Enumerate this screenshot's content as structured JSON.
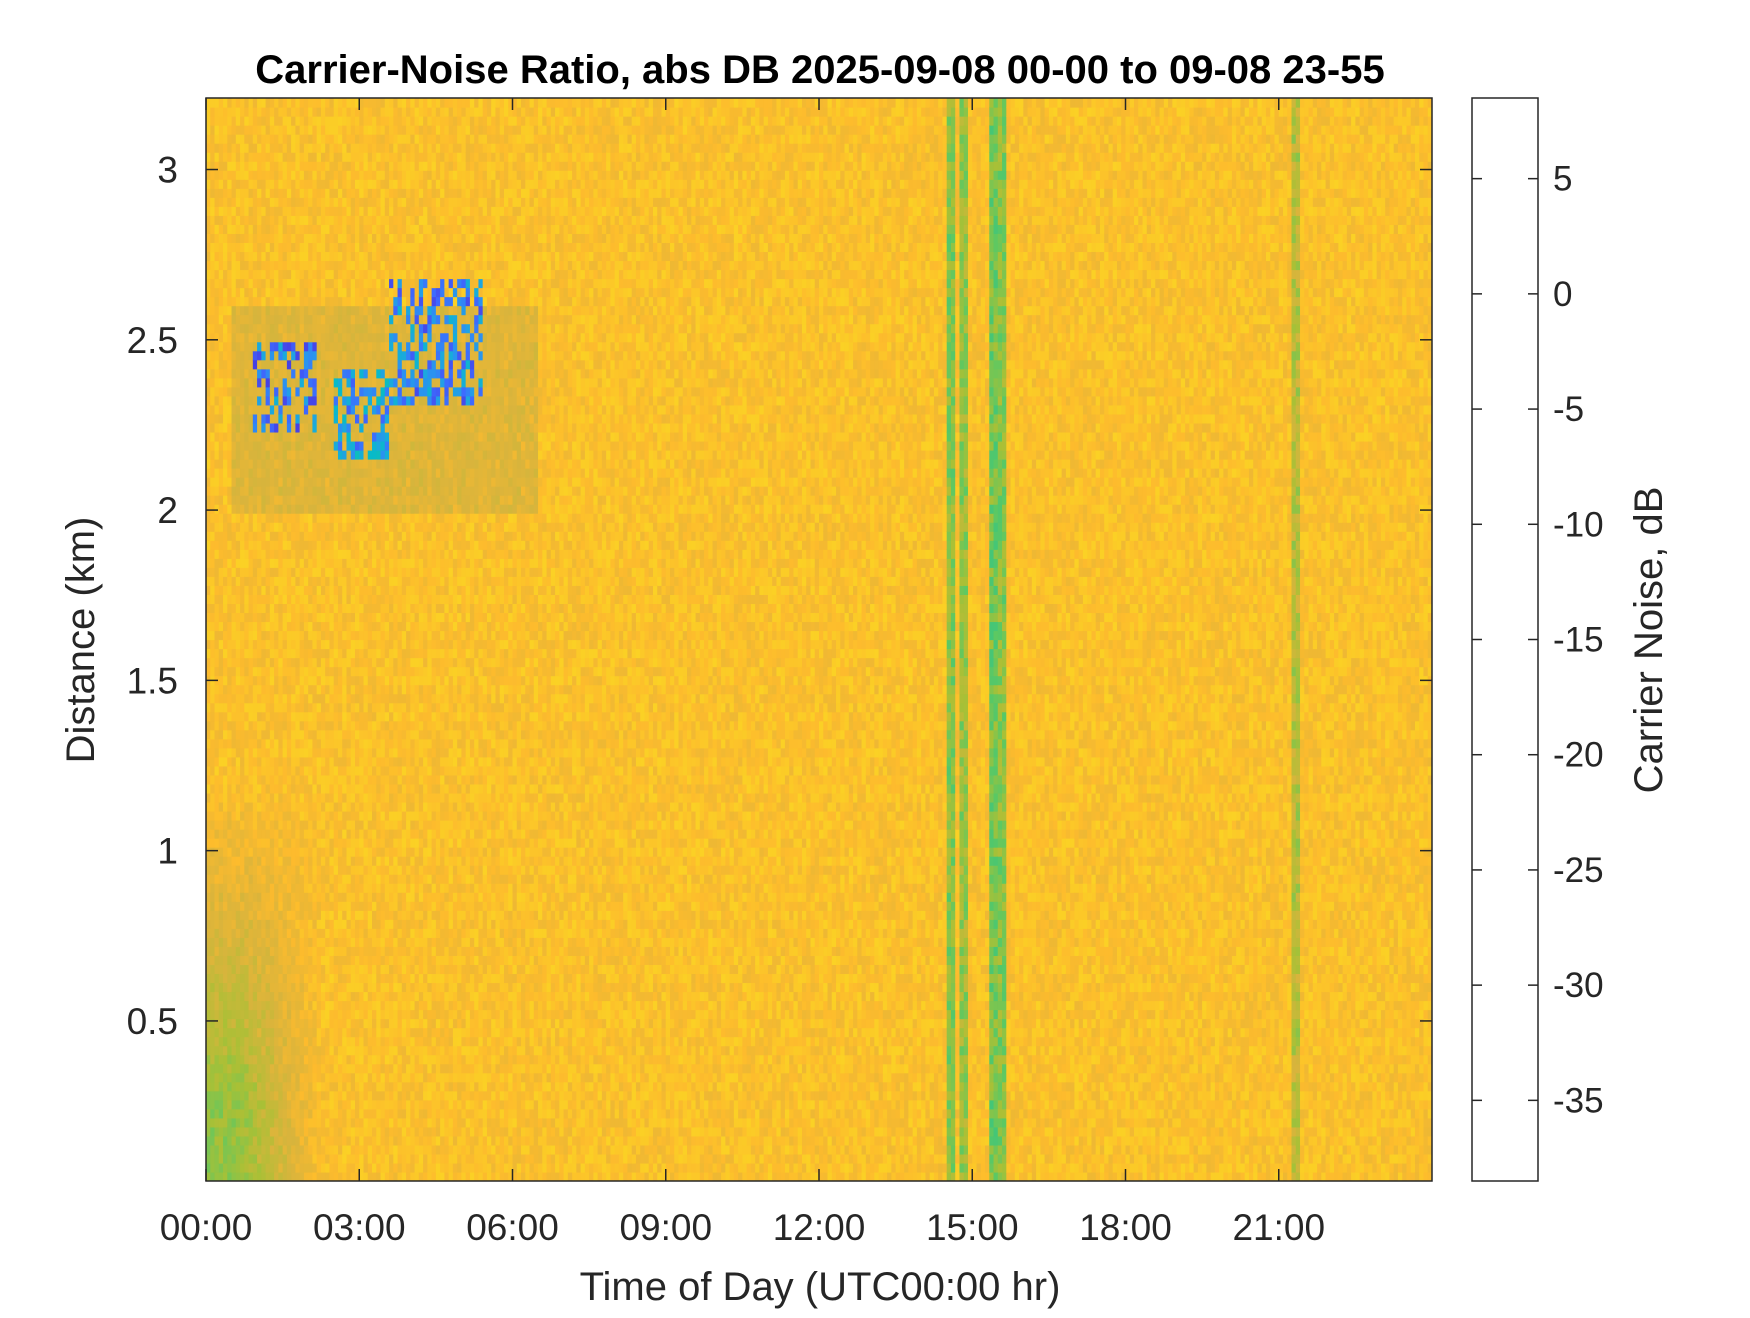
{
  "chart_data": {
    "type": "heatmap",
    "title": "Carrier-Noise Ratio, abs DB 2025-09-08 00-00 to 09-08 23-55",
    "xlabel": "Time of Day (UTC00:00 hr)",
    "ylabel": "Distance (km)",
    "colorbar_label": "Carrier Noise, dB",
    "x_unit": "hours",
    "xlim": [
      0,
      24
    ],
    "ylim": [
      0.03,
      3.21
    ],
    "clim": [
      -38.5,
      8.5
    ],
    "colorbar_reversed": true,
    "x_ticks": [
      {
        "value": 0,
        "label": "00:00"
      },
      {
        "value": 3,
        "label": "03:00"
      },
      {
        "value": 6,
        "label": "06:00"
      },
      {
        "value": 9,
        "label": "09:00"
      },
      {
        "value": 12,
        "label": "12:00"
      },
      {
        "value": 15,
        "label": "15:00"
      },
      {
        "value": 18,
        "label": "18:00"
      },
      {
        "value": 21,
        "label": "21:00"
      }
    ],
    "y_ticks": [
      {
        "value": 0.5,
        "label": "0.5"
      },
      {
        "value": 1,
        "label": "1"
      },
      {
        "value": 1.5,
        "label": "1.5"
      },
      {
        "value": 2,
        "label": "2"
      },
      {
        "value": 2.5,
        "label": "2.5"
      },
      {
        "value": 3,
        "label": "3"
      }
    ],
    "colorbar_ticks": [
      {
        "value": 5,
        "label": "5"
      },
      {
        "value": 0,
        "label": "0"
      },
      {
        "value": -5,
        "label": "-5"
      },
      {
        "value": -10,
        "label": "-10"
      },
      {
        "value": -15,
        "label": "-15"
      },
      {
        "value": -20,
        "label": "-20"
      },
      {
        "value": -25,
        "label": "-25"
      },
      {
        "value": -30,
        "label": "-30"
      },
      {
        "value": -35,
        "label": "-35"
      }
    ],
    "colormap": [
      "#3e26a8",
      "#4743e6",
      "#3d6bfe",
      "#2d8ff2",
      "#1ca8de",
      "#08bac9",
      "#2ac38d",
      "#5cc863",
      "#a9c036",
      "#d9b43c",
      "#fdbb2d",
      "#f9e01f",
      "#f9fb0e"
    ],
    "background_level_db": -31,
    "features": [
      {
        "kind": "echo-patch",
        "x_range": [
          0.9,
          2.2
        ],
        "y_range": [
          2.22,
          2.5
        ],
        "value_db": 5
      },
      {
        "kind": "echo-patch",
        "x_range": [
          2.5,
          3.6
        ],
        "y_range": [
          2.15,
          2.42
        ],
        "value_db": 2
      },
      {
        "kind": "echo-patch",
        "x_range": [
          3.6,
          5.4
        ],
        "y_range": [
          2.3,
          2.68
        ],
        "value_db": 4
      },
      {
        "kind": "diffuse-layer",
        "x_range": [
          0.5,
          6.5
        ],
        "y_range": [
          2.0,
          2.6
        ],
        "value_db": -25
      },
      {
        "kind": "near-range-enhancement",
        "x_range": [
          0,
          2.3
        ],
        "y_range": [
          0.03,
          1.2
        ],
        "value_db": -20
      },
      {
        "kind": "vertical-stripe",
        "x": 14.6,
        "value_db": -21
      },
      {
        "kind": "vertical-stripe",
        "x": 14.8,
        "value_db": -22
      },
      {
        "kind": "vertical-stripe",
        "x": 15.4,
        "value_db": -20
      },
      {
        "kind": "vertical-stripe",
        "x": 15.6,
        "value_db": -21
      },
      {
        "kind": "vertical-stripe",
        "x": 21.3,
        "value_db": -24
      }
    ]
  }
}
